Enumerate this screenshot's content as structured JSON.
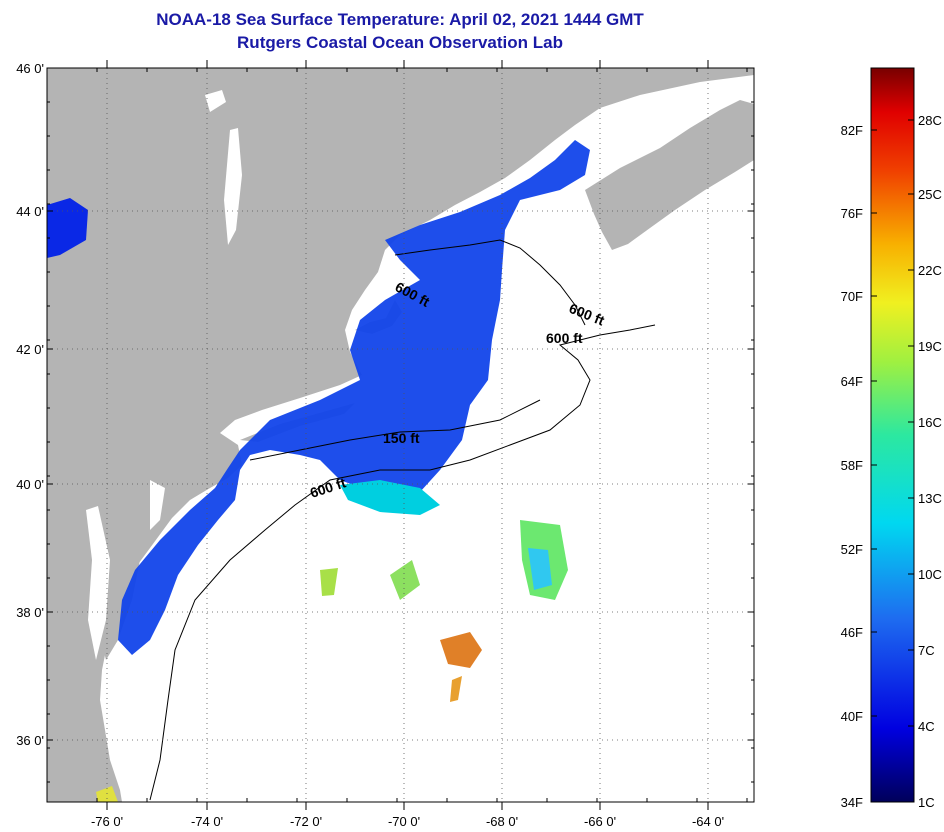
{
  "title": {
    "line1": "NOAA-18 Sea Surface Temperature:  April 02, 2021 1444 GMT",
    "line2": "Rutgers Coastal Ocean Observation Lab"
  },
  "map": {
    "lat_labels": [
      {
        "value": 46,
        "label": "46 0'"
      },
      {
        "value": 44,
        "label": "44 0'"
      },
      {
        "value": 42,
        "label": "42 0'"
      },
      {
        "value": 40,
        "label": "40 0'"
      },
      {
        "value": 38,
        "label": "38 0'"
      },
      {
        "value": 36,
        "label": "36 0'"
      }
    ],
    "lon_labels": [
      {
        "value": -76,
        "label": "-76 0'"
      },
      {
        "value": -74,
        "label": "-74 0'"
      },
      {
        "value": -72,
        "label": "-72 0'"
      },
      {
        "value": -70,
        "label": "-70 0'"
      },
      {
        "value": -68,
        "label": "-68 0'"
      },
      {
        "value": -66,
        "label": "-66 0'"
      },
      {
        "value": -64,
        "label": "-64 0'"
      }
    ],
    "lat_range": [
      35,
      46
    ],
    "lon_range": [
      -77,
      -62.5
    ],
    "depth_labels": [
      "600 ft",
      "600 ft",
      "600 ft",
      "150 ft",
      "600 ft"
    ],
    "colors": {
      "land": "#b4b4b4",
      "ocean": "#ffffff",
      "cold": "#0a28e6"
    }
  },
  "colorbar": {
    "fahrenheit": [
      "82F",
      "76F",
      "70F",
      "64F",
      "58F",
      "52F",
      "46F",
      "40F",
      "34F"
    ],
    "celsius": [
      "28C",
      "25C",
      "22C",
      "19C",
      "16C",
      "13C",
      "10C",
      "7C",
      "4C",
      "1C"
    ]
  }
}
